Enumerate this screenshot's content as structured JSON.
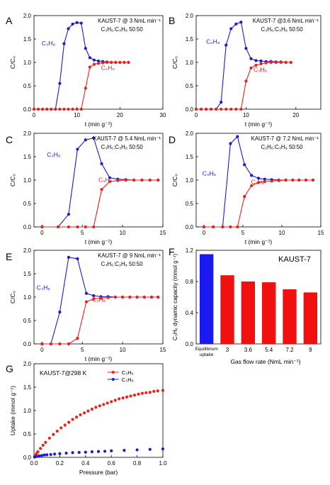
{
  "colors": {
    "c3h8": "#1a1ad6",
    "c3h6": "#e8211c",
    "equilibrium_bar": "#1a1aee",
    "bar": "#f01010",
    "axis": "#000000"
  },
  "chart_data": [
    {
      "panel": "A",
      "type": "line",
      "annotation": {
        "line1": "KAUST-7 @ 3 NmL min⁻¹",
        "line2": "C₃H₆:C₃H₈ 50:50"
      },
      "xlabel": "t (min g⁻¹)",
      "ylabel": "C/C₀",
      "xlim": [
        0,
        30
      ],
      "ylim": [
        0,
        2.0
      ],
      "xticks": [
        0,
        10,
        20,
        30
      ],
      "yticks": [
        0.0,
        0.5,
        1.0,
        1.5,
        2.0
      ],
      "series": [
        {
          "name": "C₃H₈",
          "x": [
            0,
            1,
            2,
            3,
            4,
            5,
            6,
            7,
            8,
            9,
            10,
            11,
            12,
            13,
            14,
            15,
            16,
            17,
            18,
            19,
            20,
            21,
            22
          ],
          "y": [
            0,
            0,
            0,
            0,
            0,
            0,
            0.55,
            1.4,
            1.72,
            1.82,
            1.85,
            1.84,
            1.3,
            1.1,
            1.05,
            1.03,
            1.02,
            1.01,
            1.0,
            1.0,
            1.0,
            1.0,
            1.0
          ]
        },
        {
          "name": "C₃H₆",
          "x": [
            0,
            1,
            2,
            3,
            4,
            5,
            6,
            7,
            8,
            9,
            10,
            11,
            12,
            13,
            14,
            15,
            16,
            17,
            18,
            19,
            20,
            21,
            22
          ],
          "y": [
            0,
            0,
            0,
            0,
            0,
            0,
            0,
            0,
            0,
            0,
            0,
            0,
            0.45,
            0.9,
            0.96,
            0.98,
            0.99,
            1.0,
            1.0,
            1.0,
            1.0,
            1.0,
            1.0
          ]
        }
      ]
    },
    {
      "panel": "B",
      "type": "line",
      "annotation": {
        "line1": "KAUST-7 @3.6 NmL min⁻¹",
        "line2": "C₃H₆:C₃H₈ 50:50"
      },
      "xlabel": "t (min g⁻¹)",
      "ylabel": "C/C₀",
      "xlim": [
        0,
        25
      ],
      "ylim": [
        0,
        2.0
      ],
      "xticks": [
        0,
        10,
        20
      ],
      "yticks": [
        0.0,
        0.5,
        1.0,
        1.5,
        2.0
      ],
      "series": [
        {
          "name": "C₃H₈",
          "x": [
            0,
            1,
            2,
            3,
            4,
            5,
            6,
            7,
            8,
            9,
            10,
            11,
            12,
            13,
            14,
            15,
            16,
            17,
            18,
            19
          ],
          "y": [
            0,
            0,
            0,
            0,
            0,
            0.15,
            1.37,
            1.72,
            1.82,
            1.86,
            1.3,
            1.08,
            1.04,
            1.03,
            1.02,
            1.02,
            1.01,
            1.01,
            1.0,
            1.0
          ]
        },
        {
          "name": "C₃H₆",
          "x": [
            0,
            1,
            2,
            3,
            4,
            5,
            6,
            7,
            8,
            9,
            10,
            11,
            12,
            13,
            14,
            15,
            16,
            17,
            18,
            19
          ],
          "y": [
            0,
            0,
            0,
            0,
            0,
            0,
            0,
            0,
            0,
            0,
            0.6,
            0.88,
            0.94,
            0.97,
            0.99,
            1.0,
            1.0,
            1.0,
            1.0,
            1.0
          ]
        }
      ]
    },
    {
      "panel": "C",
      "type": "line",
      "annotation": {
        "line1": "KAUST-7 @ 5.4 NmL min⁻¹",
        "line2": "C₃H₆:C₃H₈ 50:50"
      },
      "xlabel": "t (min g⁻¹)",
      "ylabel": "C/C₀",
      "xlim": [
        -1,
        15
      ],
      "ylim": [
        0,
        2.0
      ],
      "xticks": [
        0,
        5,
        10,
        15
      ],
      "yticks": [
        0.0,
        0.5,
        1.0,
        1.5,
        2.0
      ],
      "series": [
        {
          "name": "C₃H₈",
          "x": [
            0,
            2,
            3.3,
            4.4,
            5.4,
            6.4,
            7.4,
            8.4,
            9.4,
            10.4,
            11.4,
            12.4,
            13.4,
            14.4
          ],
          "y": [
            0,
            0,
            0.27,
            1.66,
            1.86,
            1.9,
            1.35,
            1.05,
            1.02,
            1.01,
            1.0,
            1.0,
            1.0,
            1.0
          ]
        },
        {
          "name": "C₃H₆",
          "x": [
            0,
            2,
            3.3,
            4.4,
            5.4,
            6.4,
            7.4,
            8.4,
            9.4,
            10.4,
            11.4,
            12.4,
            13.4,
            14.4
          ],
          "y": [
            0,
            0,
            0,
            0,
            0,
            0,
            0.8,
            0.97,
            0.99,
            1.0,
            1.0,
            1.0,
            1.0,
            1.0
          ]
        }
      ]
    },
    {
      "panel": "D",
      "type": "line",
      "annotation": {
        "line1": "KAUST-7 @ 7.2 NmL min⁻¹",
        "line2": "C₂H₆:C₃H₈ 50:50"
      },
      "xlabel": "t (min g⁻¹)",
      "ylabel": "C/C₀",
      "xlim": [
        -1,
        15
      ],
      "ylim": [
        0,
        2.0
      ],
      "xticks": [
        0,
        5,
        10,
        15
      ],
      "yticks": [
        0.0,
        0.5,
        1.0,
        1.5,
        2.0
      ],
      "series": [
        {
          "name": "C₃H₈",
          "x": [
            0,
            1.2,
            2.4,
            3.4,
            4.3,
            5.2,
            6.1,
            7,
            7.8,
            8.7,
            9.6,
            10.5,
            11.4,
            12.2,
            13.1,
            14
          ],
          "y": [
            0,
            0,
            0,
            1.78,
            1.93,
            1.33,
            1.1,
            1.04,
            1.02,
            1.01,
            1.0,
            1.0,
            1.0,
            1.0,
            1.0,
            1.0
          ]
        },
        {
          "name": "C₃H₆",
          "x": [
            0,
            1.2,
            2.4,
            3.4,
            4.3,
            5.2,
            6.1,
            7,
            7.8,
            8.7,
            9.6,
            10.5,
            11.4,
            12.2,
            13.1,
            14
          ],
          "y": [
            0,
            0,
            0,
            0,
            0,
            0.65,
            0.88,
            0.95,
            0.97,
            0.98,
            0.99,
            1.0,
            1.0,
            1.0,
            1.0,
            1.0
          ]
        }
      ]
    },
    {
      "panel": "E",
      "type": "line",
      "annotation": {
        "line1": "KAUST-7 @ 9 NmL min⁻¹",
        "line2": "C₃H₆:C₂H₈ 50:50"
      },
      "xlabel": "t (min g⁻¹)",
      "ylabel": "C/C₀",
      "xlim": [
        -1,
        15
      ],
      "ylim": [
        0,
        2.0
      ],
      "xticks": [
        0,
        5,
        10,
        15
      ],
      "yticks": [
        0.0,
        0.5,
        1.0,
        1.5,
        2.0
      ],
      "series": [
        {
          "name": "C₃H₈",
          "x": [
            0,
            1.1,
            2.2,
            3.3,
            4.4,
            5.5,
            6.4,
            7.3,
            8.2,
            9.1,
            10,
            10.9,
            11.8,
            12.7,
            13.6,
            14.4
          ],
          "y": [
            0,
            0,
            0.68,
            1.85,
            1.82,
            1.08,
            1.03,
            1.01,
            1.01,
            1.0,
            1.0,
            1.0,
            1.0,
            1.0,
            1.0,
            1.0
          ]
        },
        {
          "name": "C₃H₆",
          "x": [
            0,
            1.1,
            2.2,
            3.3,
            4.4,
            5.5,
            6.4,
            7.3,
            8.2,
            9.1,
            10,
            10.9,
            11.8,
            12.7,
            13.6,
            14.4
          ],
          "y": [
            0,
            0,
            0,
            0,
            0.12,
            0.9,
            0.96,
            0.98,
            0.99,
            1.0,
            1.0,
            1.0,
            1.0,
            1.0,
            1.0,
            1.0
          ]
        }
      ]
    },
    {
      "panel": "F",
      "type": "bar",
      "title": "KAUST-7",
      "xlabel": "Gas flow rate (NmL min⁻¹)",
      "ylabel": "C₃H₆ dynamic capacity (mmol g⁻¹)",
      "categories": [
        "Equilibrium uptake",
        "3",
        "3.6",
        "5.4",
        "7.2",
        "9"
      ],
      "values": [
        1.15,
        0.88,
        0.8,
        0.79,
        0.7,
        0.66
      ],
      "ylim": [
        0,
        1.2
      ],
      "yticks": [
        0.0,
        0.4,
        0.8,
        1.2
      ]
    },
    {
      "panel": "G",
      "type": "scatter",
      "annotation": {
        "line1": "KAUST-7@298 K"
      },
      "xlabel": "Pressure (bar)",
      "ylabel": "Uptake (mmol g⁻¹)",
      "xlim": [
        0,
        1.0
      ],
      "ylim": [
        0,
        2.0
      ],
      "xticks": [
        0.0,
        0.2,
        0.4,
        0.6,
        0.8,
        1.0
      ],
      "yticks": [
        0.0,
        0.5,
        1.0,
        1.5,
        2.0
      ],
      "legend": "top-right",
      "series": [
        {
          "name": "C₃H₆",
          "x": [
            0.005,
            0.01,
            0.02,
            0.03,
            0.05,
            0.07,
            0.09,
            0.12,
            0.15,
            0.18,
            0.21,
            0.24,
            0.27,
            0.3,
            0.33,
            0.36,
            0.39,
            0.42,
            0.45,
            0.48,
            0.51,
            0.54,
            0.57,
            0.6,
            0.63,
            0.66,
            0.69,
            0.72,
            0.75,
            0.78,
            0.81,
            0.84,
            0.87,
            0.9,
            0.93,
            0.96,
            1.0
          ],
          "y": [
            0.02,
            0.04,
            0.08,
            0.12,
            0.19,
            0.26,
            0.32,
            0.41,
            0.49,
            0.56,
            0.63,
            0.69,
            0.75,
            0.81,
            0.86,
            0.91,
            0.95,
            0.99,
            1.03,
            1.07,
            1.1,
            1.13,
            1.16,
            1.19,
            1.22,
            1.25,
            1.27,
            1.29,
            1.31,
            1.33,
            1.35,
            1.37,
            1.38,
            1.39,
            1.41,
            1.42,
            1.43
          ]
        },
        {
          "name": "C₃H₈",
          "x": [
            0.005,
            0.02,
            0.04,
            0.06,
            0.08,
            0.1,
            0.13,
            0.16,
            0.2,
            0.25,
            0.3,
            0.35,
            0.4,
            0.45,
            0.5,
            0.55,
            0.6,
            0.7,
            0.8,
            0.9,
            1.0
          ],
          "y": [
            0.005,
            0.02,
            0.03,
            0.04,
            0.05,
            0.055,
            0.06,
            0.07,
            0.08,
            0.09,
            0.1,
            0.105,
            0.11,
            0.12,
            0.125,
            0.13,
            0.14,
            0.15,
            0.16,
            0.17,
            0.18
          ]
        }
      ]
    }
  ],
  "layout_labels": {
    "A": {
      "letter": "A",
      "label_c3h8": "C₃H₈",
      "label_c3h6": "C₃H₆"
    },
    "B": {
      "letter": "B",
      "label_c3h8": "C₃H₈",
      "label_c3h6": "C₃H₆"
    },
    "C": {
      "letter": "C",
      "label_c3h8": "C₃H₈",
      "label_c3h6": "C₃H₆"
    },
    "D": {
      "letter": "D",
      "label_c3h8": "C₃H₈",
      "label_c3h6": "C₃H₆"
    },
    "E": {
      "letter": "E",
      "label_c3h8": "C₃H₈",
      "label_c3h6": "C₃H₆"
    },
    "F": {
      "letter": "F"
    },
    "G": {
      "letter": "G"
    }
  }
}
